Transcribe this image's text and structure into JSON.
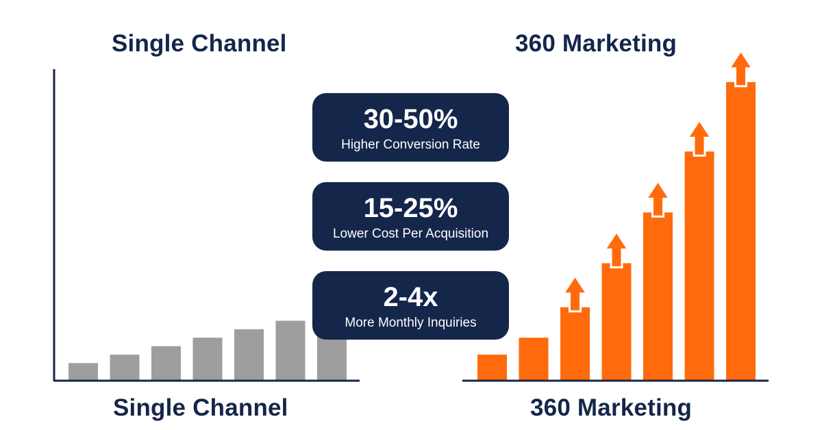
{
  "colors": {
    "navy": "#14264a",
    "gray_bars": "#9e9e9e",
    "orange_bars": "#ff6b0c"
  },
  "left_panel": {
    "top_title": "Single Channel",
    "bottom_label": "Single Channel"
  },
  "right_panel": {
    "top_title": "360 Marketing",
    "bottom_label": "360 Marketing"
  },
  "stats": [
    {
      "value": "30-50%",
      "label": "Higher Conversion Rate"
    },
    {
      "value": "15-25%",
      "label": "Lower Cost Per Acquisition"
    },
    {
      "value": "2-4x",
      "label": "More Monthly Inquiries"
    }
  ],
  "chart_data": [
    {
      "type": "bar",
      "title": "Single Channel",
      "xlabel": "Single Channel",
      "values": [
        1.0,
        1.5,
        2.0,
        2.5,
        3.0,
        3.5,
        4.0
      ],
      "ylim": [
        0,
        18
      ],
      "grid": false,
      "color": "#9e9e9e"
    },
    {
      "type": "bar",
      "title": "360 Marketing",
      "xlabel": "360 Marketing",
      "values": [
        1.5,
        2.5,
        4.3,
        6.9,
        9.9,
        13.5,
        17.6
      ],
      "ylim": [
        0,
        18
      ],
      "grid": false,
      "color": "#ff6b0c",
      "arrows_on_bars": [
        3,
        4,
        5,
        6,
        7
      ]
    }
  ]
}
